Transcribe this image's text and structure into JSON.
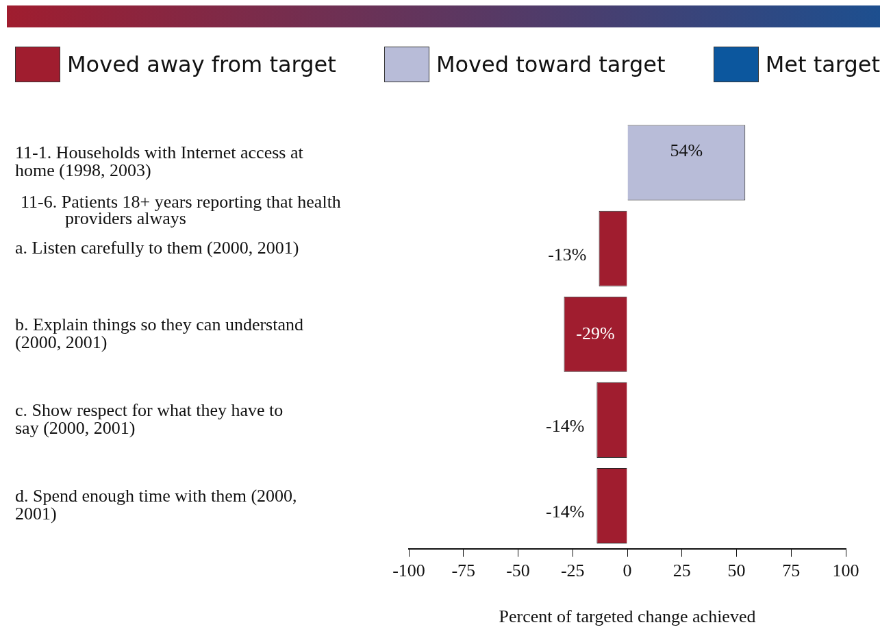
{
  "chart_data": {
    "type": "bar",
    "orientation": "horizontal",
    "stacked": true,
    "categories": [
      "11-1. Households with Internet access at home (1998, 2003)",
      "a. Listen carefully to them (2000, 2001)",
      "b. Explain things so they can understand (2000, 2001)",
      "c. Show respect for what they have to say (2000, 2001)",
      "d. Spend enough time with them (2000, 2001)"
    ],
    "series": [
      {
        "name": "Moved away from target",
        "color": "#a01d2f",
        "values": [
          null,
          -13,
          -29,
          -14,
          -14
        ],
        "value_labels": [
          null,
          "-13%",
          "-29%",
          "-14%",
          "-14%"
        ]
      },
      {
        "name": "Moved toward target",
        "color": "#b8bcd8",
        "values": [
          54,
          null,
          null,
          null,
          null
        ],
        "value_labels": [
          "54%",
          null,
          null,
          null,
          null
        ]
      },
      {
        "name": "Met target",
        "color": "#0c579e",
        "values": [
          null,
          null,
          null,
          null,
          null
        ]
      }
    ],
    "xlabel": "Percent of targeted change achieved",
    "xlim": [
      -100,
      100
    ],
    "xticks": [
      -100,
      -75,
      -50,
      -25,
      0,
      25,
      50,
      75,
      100
    ],
    "annotations": [
      "11-6. Patients 18+ years reporting that health providers always"
    ],
    "grid": false,
    "legend": "top"
  }
}
